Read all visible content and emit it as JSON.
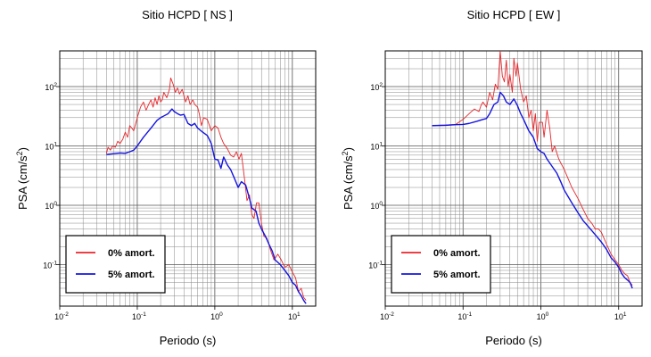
{
  "chart_data": [
    {
      "type": "line",
      "title": "Sitio HCPD [ NS ]",
      "xlabel": "Periodo (s)",
      "ylabel_main": "PSA (cm/s",
      "ylabel_sup": "2",
      "ylabel_close": ")",
      "xscale": "log",
      "yscale": "log",
      "xlim": [
        0.01,
        20
      ],
      "ylim": [
        0.02,
        400
      ],
      "xticks": [
        0.01,
        0.1,
        1,
        10
      ],
      "yticks": [
        0.1,
        1,
        10,
        100
      ],
      "grid": true,
      "legend_position": "bottom-left",
      "series": [
        {
          "name": "0% amort.",
          "color": "#e8262b",
          "points": [
            [
              0.04,
              7.5
            ],
            [
              0.042,
              9.5
            ],
            [
              0.045,
              8.5
            ],
            [
              0.048,
              10
            ],
            [
              0.052,
              9.5
            ],
            [
              0.056,
              12
            ],
            [
              0.06,
              11
            ],
            [
              0.065,
              13
            ],
            [
              0.07,
              17
            ],
            [
              0.075,
              14
            ],
            [
              0.08,
              22
            ],
            [
              0.085,
              20
            ],
            [
              0.09,
              18
            ],
            [
              0.1,
              30
            ],
            [
              0.11,
              45
            ],
            [
              0.12,
              55
            ],
            [
              0.13,
              40
            ],
            [
              0.14,
              50
            ],
            [
              0.15,
              60
            ],
            [
              0.16,
              45
            ],
            [
              0.17,
              65
            ],
            [
              0.18,
              50
            ],
            [
              0.19,
              70
            ],
            [
              0.2,
              55
            ],
            [
              0.21,
              60
            ],
            [
              0.22,
              80
            ],
            [
              0.24,
              65
            ],
            [
              0.26,
              90
            ],
            [
              0.27,
              140
            ],
            [
              0.29,
              110
            ],
            [
              0.31,
              80
            ],
            [
              0.33,
              95
            ],
            [
              0.35,
              75
            ],
            [
              0.38,
              90
            ],
            [
              0.4,
              70
            ],
            [
              0.42,
              55
            ],
            [
              0.45,
              70
            ],
            [
              0.48,
              50
            ],
            [
              0.52,
              60
            ],
            [
              0.55,
              50
            ],
            [
              0.6,
              45
            ],
            [
              0.63,
              35
            ],
            [
              0.67,
              22
            ],
            [
              0.72,
              30
            ],
            [
              0.8,
              28
            ],
            [
              0.9,
              18
            ],
            [
              1.0,
              22
            ],
            [
              1.1,
              20
            ],
            [
              1.2,
              14
            ],
            [
              1.3,
              11
            ],
            [
              1.45,
              9
            ],
            [
              1.6,
              7
            ],
            [
              1.75,
              6.5
            ],
            [
              1.9,
              8
            ],
            [
              2.05,
              6
            ],
            [
              2.2,
              7.5
            ],
            [
              2.4,
              3
            ],
            [
              2.6,
              1.2
            ],
            [
              2.8,
              1.5
            ],
            [
              3.0,
              0.7
            ],
            [
              3.2,
              0.6
            ],
            [
              3.45,
              1.1
            ],
            [
              3.7,
              1.1
            ],
            [
              4.0,
              0.5
            ],
            [
              4.3,
              0.3
            ],
            [
              4.7,
              0.28
            ],
            [
              5.2,
              0.18
            ],
            [
              5.8,
              0.12
            ],
            [
              6.5,
              0.15
            ],
            [
              7.2,
              0.12
            ],
            [
              8,
              0.09
            ],
            [
              9,
              0.1
            ],
            [
              10,
              0.075
            ],
            [
              11,
              0.06
            ],
            [
              12,
              0.035
            ],
            [
              13,
              0.04
            ],
            [
              14,
              0.028
            ],
            [
              15,
              0.025
            ]
          ]
        },
        {
          "name": "5% amort.",
          "color": "#1414e0",
          "points": [
            [
              0.04,
              7.2
            ],
            [
              0.05,
              7.4
            ],
            [
              0.06,
              7.6
            ],
            [
              0.07,
              7.5
            ],
            [
              0.08,
              8
            ],
            [
              0.09,
              8.5
            ],
            [
              0.1,
              10
            ],
            [
              0.12,
              14
            ],
            [
              0.15,
              20
            ],
            [
              0.18,
              27
            ],
            [
              0.2,
              30
            ],
            [
              0.22,
              32
            ],
            [
              0.25,
              35
            ],
            [
              0.28,
              42
            ],
            [
              0.3,
              38
            ],
            [
              0.33,
              35
            ],
            [
              0.36,
              33
            ],
            [
              0.4,
              34
            ],
            [
              0.45,
              24
            ],
            [
              0.5,
              22
            ],
            [
              0.55,
              24
            ],
            [
              0.6,
              20
            ],
            [
              0.7,
              17
            ],
            [
              0.8,
              15
            ],
            [
              0.9,
              11
            ],
            [
              1.0,
              6
            ],
            [
              1.1,
              5.8
            ],
            [
              1.2,
              4.2
            ],
            [
              1.3,
              6.5
            ],
            [
              1.45,
              4.8
            ],
            [
              1.6,
              4
            ],
            [
              1.8,
              2.8
            ],
            [
              2.0,
              2
            ],
            [
              2.2,
              2.5
            ],
            [
              2.5,
              2.2
            ],
            [
              2.8,
              1.3
            ],
            [
              3.0,
              0.9
            ],
            [
              3.4,
              0.8
            ],
            [
              3.7,
              0.5
            ],
            [
              4.0,
              0.4
            ],
            [
              4.5,
              0.3
            ],
            [
              5,
              0.22
            ],
            [
              5.5,
              0.17
            ],
            [
              6,
              0.12
            ],
            [
              7,
              0.1
            ],
            [
              8,
              0.08
            ],
            [
              9,
              0.065
            ],
            [
              10,
              0.05
            ],
            [
              11,
              0.045
            ],
            [
              12,
              0.035
            ],
            [
              13,
              0.03
            ],
            [
              14,
              0.025
            ],
            [
              15,
              0.022
            ]
          ]
        }
      ]
    },
    {
      "type": "line",
      "title": "Sitio HCPD [ EW ]",
      "xlabel": "Periodo (s)",
      "ylabel_main": "PSA (cm/s",
      "ylabel_sup": "2",
      "ylabel_close": ")",
      "xscale": "log",
      "yscale": "log",
      "xlim": [
        0.01,
        20
      ],
      "ylim": [
        0.02,
        400
      ],
      "xticks": [
        0.01,
        0.1,
        1,
        10
      ],
      "yticks": [
        0.1,
        1,
        10,
        100
      ],
      "grid": true,
      "legend_position": "bottom-left",
      "series": [
        {
          "name": "0% amort.",
          "color": "#e8262b",
          "points": [
            [
              0.04,
              22
            ],
            [
              0.06,
              22.5
            ],
            [
              0.08,
              23
            ],
            [
              0.1,
              28
            ],
            [
              0.12,
              35
            ],
            [
              0.14,
              42
            ],
            [
              0.16,
              38
            ],
            [
              0.17,
              48
            ],
            [
              0.18,
              55
            ],
            [
              0.2,
              45
            ],
            [
              0.22,
              80
            ],
            [
              0.24,
              60
            ],
            [
              0.26,
              110
            ],
            [
              0.28,
              90
            ],
            [
              0.3,
              400
            ],
            [
              0.32,
              150
            ],
            [
              0.34,
              120
            ],
            [
              0.36,
              280
            ],
            [
              0.38,
              100
            ],
            [
              0.4,
              160
            ],
            [
              0.43,
              80
            ],
            [
              0.45,
              300
            ],
            [
              0.48,
              150
            ],
            [
              0.5,
              250
            ],
            [
              0.55,
              90
            ],
            [
              0.6,
              55
            ],
            [
              0.65,
              70
            ],
            [
              0.7,
              30
            ],
            [
              0.75,
              40
            ],
            [
              0.8,
              18
            ],
            [
              0.85,
              35
            ],
            [
              0.9,
              12
            ],
            [
              0.95,
              25
            ],
            [
              1.05,
              25
            ],
            [
              1.1,
              14
            ],
            [
              1.2,
              40
            ],
            [
              1.3,
              20
            ],
            [
              1.4,
              8
            ],
            [
              1.5,
              10
            ],
            [
              1.7,
              6
            ],
            [
              2.0,
              4
            ],
            [
              2.5,
              2
            ],
            [
              3,
              1.3
            ],
            [
              3.5,
              0.85
            ],
            [
              4,
              0.6
            ],
            [
              4.5,
              0.5
            ],
            [
              5,
              0.4
            ],
            [
              5.5,
              0.4
            ],
            [
              6,
              0.35
            ],
            [
              7,
              0.22
            ],
            [
              8,
              0.15
            ],
            [
              9,
              0.12
            ],
            [
              10,
              0.1
            ],
            [
              11,
              0.08
            ],
            [
              12,
              0.07
            ],
            [
              13,
              0.065
            ],
            [
              14,
              0.05
            ],
            [
              15,
              0.045
            ]
          ]
        },
        {
          "name": "5% amort.",
          "color": "#1414e0",
          "points": [
            [
              0.04,
              22
            ],
            [
              0.06,
              22.3
            ],
            [
              0.08,
              22.8
            ],
            [
              0.1,
              23
            ],
            [
              0.12,
              24
            ],
            [
              0.15,
              26
            ],
            [
              0.18,
              28
            ],
            [
              0.2,
              29
            ],
            [
              0.22,
              35
            ],
            [
              0.25,
              50
            ],
            [
              0.28,
              55
            ],
            [
              0.3,
              80
            ],
            [
              0.33,
              70
            ],
            [
              0.36,
              55
            ],
            [
              0.4,
              50
            ],
            [
              0.45,
              62
            ],
            [
              0.5,
              48
            ],
            [
              0.55,
              35
            ],
            [
              0.6,
              28
            ],
            [
              0.7,
              18
            ],
            [
              0.8,
              14
            ],
            [
              0.9,
              9
            ],
            [
              1.0,
              8
            ],
            [
              1.1,
              7.5
            ],
            [
              1.2,
              6
            ],
            [
              1.4,
              4.5
            ],
            [
              1.6,
              3.5
            ],
            [
              1.8,
              2.5
            ],
            [
              2,
              1.8
            ],
            [
              2.5,
              1.1
            ],
            [
              3,
              0.75
            ],
            [
              3.5,
              0.55
            ],
            [
              4,
              0.45
            ],
            [
              5,
              0.32
            ],
            [
              6,
              0.24
            ],
            [
              7,
              0.18
            ],
            [
              8,
              0.13
            ],
            [
              9,
              0.11
            ],
            [
              10,
              0.09
            ],
            [
              11,
              0.07
            ],
            [
              12,
              0.06
            ],
            [
              13,
              0.055
            ],
            [
              14,
              0.05
            ],
            [
              15,
              0.04
            ]
          ]
        }
      ]
    }
  ]
}
